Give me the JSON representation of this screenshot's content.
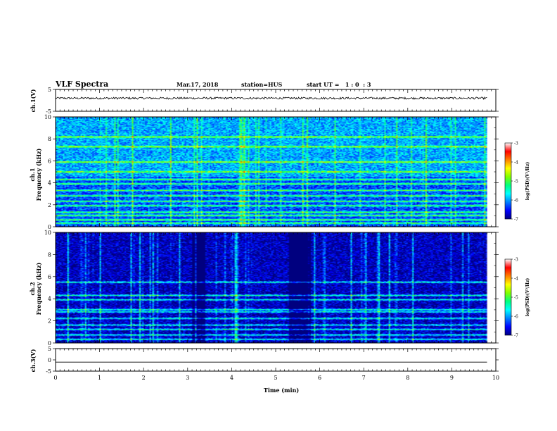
{
  "header": {
    "title": "VLF Spectra",
    "date": "Mar.17, 2018",
    "station": "station=HUS",
    "start": "start UT =   1 : 0  : 3"
  },
  "colorbar": {
    "ticks": [
      "-3",
      "-4",
      "-5",
      "-6",
      "-7"
    ],
    "label": "log(PSD)(V²/Hz)",
    "stops": [
      "#00007f",
      "#0000ff",
      "#0080ff",
      "#00ffff",
      "#00ff80",
      "#80ff00",
      "#ffff00",
      "#ff8000",
      "#ff0000",
      "#ffffff"
    ]
  },
  "chart_data": [
    {
      "type": "line",
      "name": "ch1-waveform",
      "ylabel": "ch.1(V)",
      "ylim": [
        -5,
        5
      ],
      "yticks": [
        "5",
        "-5"
      ],
      "description_values": "noisy waveform near 1 V",
      "y_level": 1
    },
    {
      "type": "heatmap",
      "name": "ch1-spectrogram",
      "ylabel": "ch.1\nFrequency (kHz)",
      "ylabel_line1": "ch.1",
      "ylabel_line2": "Frequency (kHz)",
      "ylim": [
        0,
        10
      ],
      "yticks": [
        "0",
        "2",
        "4",
        "6",
        "8",
        "10"
      ],
      "clim": [
        -7,
        -3
      ],
      "bands_khz": [
        0.3,
        0.6,
        1.0,
        1.3,
        1.9,
        2.3,
        2.8,
        3.3,
        3.9,
        4.3,
        5.0,
        5.9,
        7.3,
        8.2
      ],
      "background_level": -6.3
    },
    {
      "type": "heatmap",
      "name": "ch2-spectrogram",
      "ylabel": "ch.2\nFrequency (kHz)",
      "ylabel_line1": "ch.2",
      "ylabel_line2": "Frequency (kHz)",
      "ylim": [
        0,
        10
      ],
      "yticks": [
        "0",
        "2",
        "4",
        "6",
        "8",
        "10"
      ],
      "clim": [
        -7,
        -3
      ],
      "bands_khz": [
        0.3,
        0.7,
        1.2,
        1.6,
        2.2,
        2.8,
        3.0,
        3.9,
        4.3,
        5.5
      ],
      "background_level": -6.8,
      "gaps_min": [
        [
          3.1,
          3.4
        ],
        [
          5.3,
          5.8
        ]
      ]
    },
    {
      "type": "line",
      "name": "ch3-waveform",
      "ylabel": "ch.3(V)",
      "ylim": [
        -5,
        5
      ],
      "yticks": [
        "5",
        "0",
        "-5"
      ],
      "y_level": -1
    }
  ],
  "xaxis": {
    "label": "Time (min)",
    "ticks": [
      "0",
      "1",
      "2",
      "3",
      "4",
      "5",
      "6",
      "7",
      "8",
      "9",
      "10"
    ],
    "xlim": [
      0,
      10
    ],
    "data_end": 9.8
  }
}
